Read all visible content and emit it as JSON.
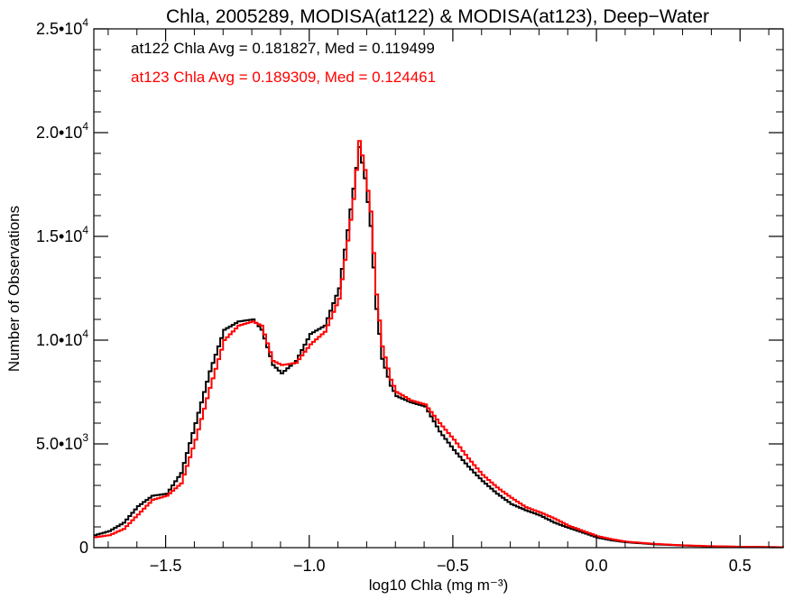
{
  "chart_data": {
    "type": "line",
    "title": "Chla, 2005289, MODISA(at122) & MODISA(at123), Deep−Water",
    "xlabel": "log10 Chla (mg m⁻³)",
    "ylabel": "Number of Observations",
    "xlim": [
      -1.75,
      0.65
    ],
    "ylim": [
      0,
      25000
    ],
    "grid": false,
    "legend_position": "top-left",
    "x_ticks": [
      {
        "value": -1.5,
        "label": "−1.5"
      },
      {
        "value": -1.0,
        "label": "−1.0"
      },
      {
        "value": -0.5,
        "label": "−0.5"
      },
      {
        "value": 0.0,
        "label": "0.0"
      },
      {
        "value": 0.5,
        "label": "0.5"
      }
    ],
    "y_ticks": [
      {
        "value": 0,
        "mant": "0",
        "exp": ""
      },
      {
        "value": 5000,
        "mant": "5.0•10",
        "exp": "3"
      },
      {
        "value": 10000,
        "mant": "1.0•10",
        "exp": "4"
      },
      {
        "value": 15000,
        "mant": "1.5•10",
        "exp": "4"
      },
      {
        "value": 20000,
        "mant": "2.0•10",
        "exp": "4"
      },
      {
        "value": 25000,
        "mant": "2.5•10",
        "exp": "4"
      }
    ],
    "annotations": [
      {
        "text": "at122 Chla Avg = 0.181827, Med = 0.119499",
        "color": "#000000"
      },
      {
        "text": "at123 Chla Avg = 0.189309, Med = 0.124461",
        "color": "#ff0000"
      }
    ],
    "series": [
      {
        "color": "#000000",
        "x": [
          -1.75,
          -1.7,
          -1.65,
          -1.6,
          -1.55,
          -1.5,
          -1.45,
          -1.4,
          -1.35,
          -1.3,
          -1.25,
          -1.2,
          -1.17,
          -1.13,
          -1.1,
          -1.05,
          -1.0,
          -0.95,
          -0.9,
          -0.87,
          -0.85,
          -0.83,
          -0.81,
          -0.79,
          -0.77,
          -0.75,
          -0.72,
          -0.7,
          -0.65,
          -0.6,
          -0.55,
          -0.5,
          -0.45,
          -0.4,
          -0.35,
          -0.3,
          -0.25,
          -0.2,
          -0.15,
          -0.1,
          -0.05,
          0.0,
          0.05,
          0.1,
          0.2,
          0.3,
          0.4,
          0.5,
          0.65
        ],
        "y": [
          600,
          800,
          1200,
          2000,
          2500,
          2600,
          3600,
          6000,
          8500,
          10500,
          10900,
          11000,
          10500,
          8800,
          8400,
          9000,
          10300,
          10700,
          12500,
          15300,
          17300,
          19300,
          17800,
          15500,
          11500,
          9100,
          7800,
          7300,
          7000,
          6800,
          5600,
          4700,
          3900,
          3200,
          2600,
          2100,
          1800,
          1550,
          1200,
          950,
          720,
          480,
          350,
          260,
          160,
          100,
          60,
          40,
          20
        ]
      },
      {
        "color": "#ff0000",
        "x": [
          -1.75,
          -1.7,
          -1.65,
          -1.6,
          -1.55,
          -1.5,
          -1.45,
          -1.4,
          -1.35,
          -1.3,
          -1.25,
          -1.2,
          -1.17,
          -1.13,
          -1.1,
          -1.05,
          -1.0,
          -0.95,
          -0.9,
          -0.87,
          -0.85,
          -0.83,
          -0.81,
          -0.79,
          -0.77,
          -0.75,
          -0.72,
          -0.7,
          -0.65,
          -0.6,
          -0.55,
          -0.5,
          -0.45,
          -0.4,
          -0.35,
          -0.3,
          -0.25,
          -0.2,
          -0.15,
          -0.1,
          -0.05,
          0.0,
          0.05,
          0.1,
          0.2,
          0.3,
          0.4,
          0.5,
          0.65
        ],
        "y": [
          500,
          600,
          900,
          1600,
          2300,
          2500,
          3100,
          5200,
          7700,
          10000,
          10700,
          10900,
          10700,
          9000,
          8800,
          8900,
          9800,
          10400,
          12000,
          14800,
          16800,
          19600,
          18200,
          16200,
          12200,
          9700,
          8100,
          7500,
          7100,
          6900,
          6000,
          5200,
          4300,
          3500,
          2900,
          2400,
          1950,
          1700,
          1400,
          1050,
          800,
          550,
          400,
          290,
          180,
          110,
          70,
          45,
          20
        ]
      }
    ]
  }
}
